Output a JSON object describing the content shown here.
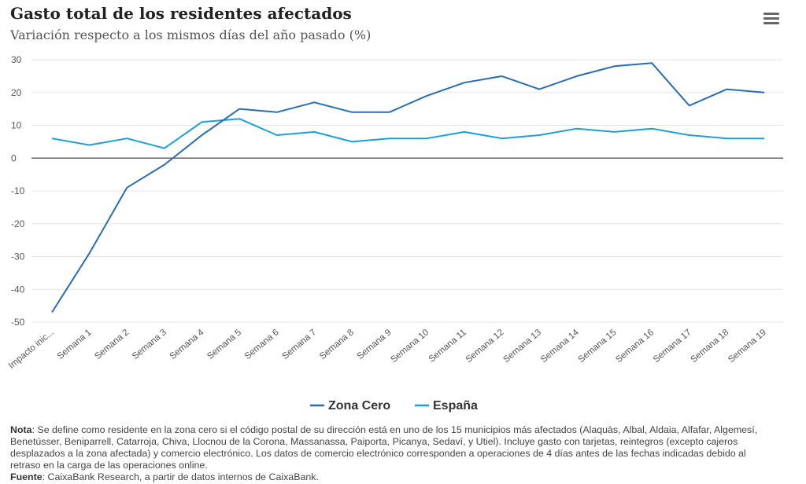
{
  "title": "Gasto total de los residentes afectados",
  "subtitle": "Variación respecto a los mismos días del año pasado (%)",
  "menu_icon": "hamburger-menu-icon",
  "chart_data": {
    "type": "line",
    "categories": [
      "Impacto inic...",
      "Semana 1",
      "Semana 2",
      "Semana 3",
      "Semana 4",
      "Semana 5",
      "Semana 6",
      "Semana 7",
      "Semana 8",
      "Semana 9",
      "Semana 10",
      "Semana 11",
      "Semana 12",
      "Semana 13",
      "Semana 14",
      "Semana 15",
      "Semana 16",
      "Semana 17",
      "Semana 18",
      "Semana 19"
    ],
    "series": [
      {
        "name": "Zona Cero",
        "color": "#2b6cb0",
        "values": [
          -47,
          -29,
          -9,
          -2,
          7,
          15,
          14,
          17,
          14,
          14,
          19,
          23,
          25,
          21,
          25,
          28,
          29,
          16,
          21,
          20
        ]
      },
      {
        "name": "España",
        "color": "#1a9fd9",
        "values": [
          6,
          4,
          6,
          3,
          11,
          12,
          7,
          8,
          5,
          6,
          6,
          8,
          6,
          7,
          9,
          8,
          9,
          7,
          6,
          6
        ]
      }
    ],
    "ylim": [
      -50,
      30
    ],
    "yticks": [
      30,
      20,
      10,
      0,
      -10,
      -20,
      -30,
      -40,
      -50
    ],
    "grid": true,
    "legend": "bottom-center"
  },
  "note": {
    "nota_label": "Nota",
    "nota_text": ": Se define como residente en la zona cero si el código postal de su dirección está en uno de los 15 municipios más afectados (Alaquàs, Albal, Aldaia, Alfafar, Algemesí, Benetússer, Beniparrell, Catarroja, Chiva, Llocnou de la Corona, Massanassa, Paiporta, Picanya, Sedaví, y Utiel). Incluye gasto con tarjetas, reintegros (excepto cajeros desplazados a la zona afectada) y comercio electrónico. Los datos de comercio electrónico corresponden a operaciones de 4 días antes de las fechas indicadas debido al retraso en la carga de las operaciones online.",
    "fuente_label": "Fuente",
    "fuente_text": ": CaixaBank Research, a partir de datos internos de CaixaBank."
  }
}
